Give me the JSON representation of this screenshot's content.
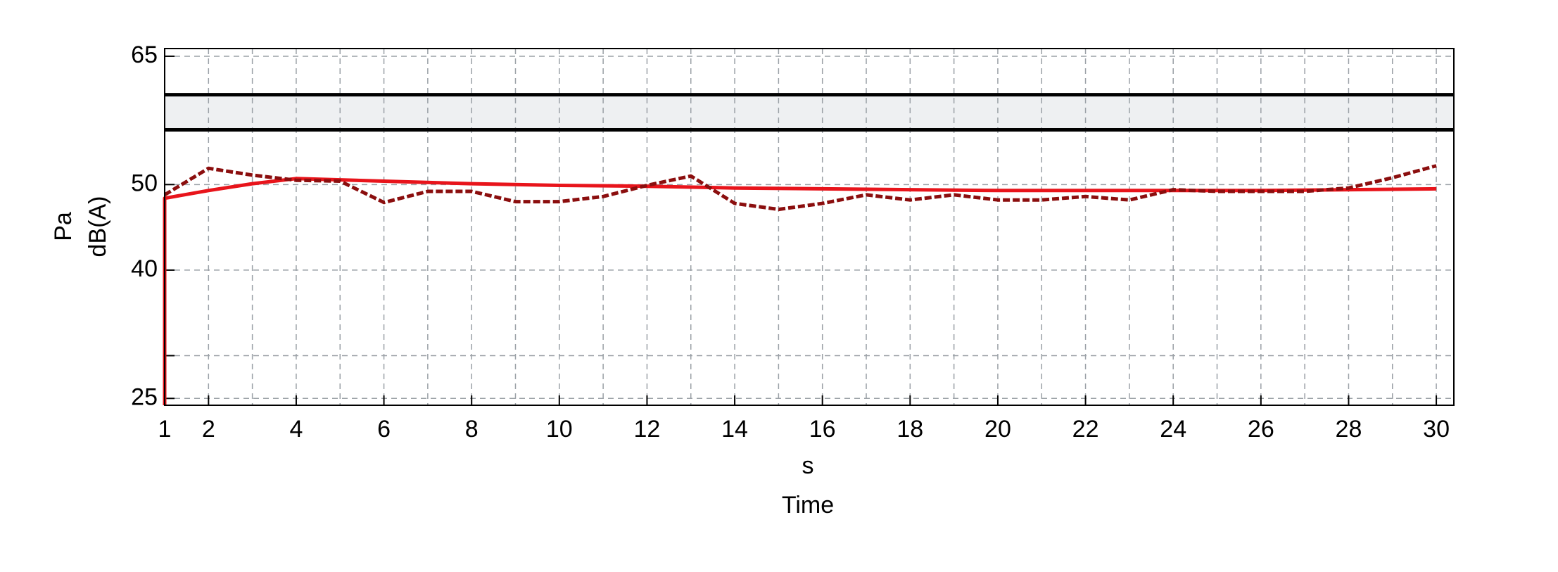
{
  "chart_data": {
    "type": "line",
    "xlabel_unit": "s",
    "xlabel": "Time",
    "ylabel_unit": "Pa",
    "ylabel": "dB(A)",
    "xlim": [
      1,
      30.4
    ],
    "xticks": [
      1,
      2,
      4,
      6,
      8,
      10,
      12,
      14,
      16,
      18,
      20,
      22,
      24,
      26,
      28,
      30
    ],
    "xticks_unlabeled": [
      3,
      5,
      7,
      9,
      11,
      13,
      15,
      17,
      19,
      21,
      23,
      25,
      27,
      29
    ],
    "ylim": [
      24.2,
      65.9
    ],
    "yticks": [
      25,
      40,
      50,
      65
    ],
    "yticks_unlabeled": [
      30
    ],
    "grid": true,
    "limit_band": {
      "lower": 56.4,
      "upper": 60.5,
      "color": "#eef0f2",
      "line_color": "#000000"
    },
    "series": [
      {
        "color": "#e8141b",
        "dashed": false,
        "x": [
          1,
          1,
          2,
          3,
          4,
          6,
          8,
          10,
          12,
          14,
          16,
          18,
          20,
          22,
          24,
          26,
          28,
          30
        ],
        "values": [
          24.2,
          48.4,
          49.3,
          50.1,
          50.7,
          50.4,
          50.1,
          49.9,
          49.8,
          49.6,
          49.5,
          49.4,
          49.3,
          49.3,
          49.3,
          49.3,
          49.4,
          49.5
        ]
      },
      {
        "color": "#8b0e0e",
        "dashed": true,
        "x": [
          1,
          2,
          3,
          4,
          5,
          6,
          7,
          8,
          9,
          10,
          11,
          12,
          13,
          14,
          15,
          16,
          17,
          18,
          19,
          20,
          21,
          22,
          23,
          24,
          25,
          26,
          27,
          28,
          29,
          30
        ],
        "values": [
          48.8,
          51.9,
          51.1,
          50.5,
          50.4,
          47.9,
          49.2,
          49.2,
          48.0,
          48.0,
          48.6,
          49.9,
          51.0,
          47.8,
          47.1,
          47.8,
          48.8,
          48.2,
          48.8,
          48.2,
          48.2,
          48.6,
          48.2,
          49.4,
          49.2,
          49.2,
          49.2,
          49.6,
          50.8,
          52.2
        ]
      }
    ]
  }
}
